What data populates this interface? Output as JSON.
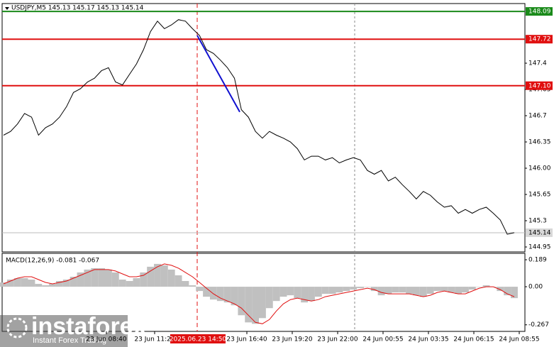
{
  "brand": "instaforex",
  "tagline": "Instant Forex Trading",
  "chart_data": [
    {
      "type": "line",
      "title": "USDJPY,M5  145.13 145.17 145.13 145.14",
      "color": "#000000",
      "values": [
        146.44,
        146.49,
        146.59,
        146.73,
        146.68,
        146.44,
        146.54,
        146.59,
        146.68,
        146.82,
        147.01,
        147.06,
        147.15,
        147.2,
        147.3,
        147.34,
        147.15,
        147.11,
        147.25,
        147.39,
        147.58,
        147.82,
        147.96,
        147.86,
        147.91,
        147.98,
        147.96,
        147.86,
        147.77,
        147.58,
        147.53,
        147.44,
        147.34,
        147.2,
        146.78,
        146.68,
        146.49,
        146.4,
        146.49,
        146.44,
        146.4,
        146.35,
        146.26,
        146.11,
        146.16,
        146.16,
        146.11,
        146.14,
        146.07,
        146.11,
        146.14,
        146.11,
        145.97,
        145.92,
        145.97,
        145.83,
        145.88,
        145.78,
        145.69,
        145.59,
        145.69,
        145.64,
        145.55,
        145.48,
        145.5,
        145.4,
        145.45,
        145.4,
        145.45,
        145.48,
        145.4,
        145.31,
        145.12,
        145.14
      ],
      "levels": [
        {
          "value": 148.09,
          "color": "#1a8a1a"
        },
        {
          "value": 147.72,
          "color": "#e01010"
        },
        {
          "value": 147.1,
          "label": "147.10",
          "color": "#e01010"
        }
      ],
      "current": 145.14,
      "trend": {
        "values": [
          147.77,
          146.75
        ],
        "color": "#1010d0"
      },
      "ylim": [
        144.884,
        148.195
      ],
      "yticks": [
        147.4,
        147.05,
        146.7,
        146.35,
        {
          "value": 146,
          "label": "146.00"
        },
        145.65,
        145.3,
        144.95
      ],
      "time_labels": [
        "23 Jun 08:40",
        "23 Jun 11:20",
        "23 Jun 16:40",
        "23 Jun 19:20",
        "23 Jun 22:00",
        "24 Jun 00:55",
        "24 Jun 03:35",
        "24 Jun 06:15",
        "24 Jun 08:55"
      ],
      "marker_label": "2025.06.23 14:50"
    },
    {
      "type": "bar",
      "title": "MACD(12,26,9) -0.081 -0.067",
      "color": "#c0c0c0",
      "values": [
        0.03,
        0.05,
        0.06,
        0.06,
        0.05,
        0.02,
        0.01,
        0.02,
        0.04,
        0.05,
        0.07,
        0.1,
        0.12,
        0.13,
        0.13,
        0.12,
        0.1,
        0.05,
        0.04,
        0.06,
        0.1,
        0.14,
        0.16,
        0.15,
        0.12,
        0.08,
        0.04,
        0.01,
        -0.03,
        -0.07,
        -0.09,
        -0.1,
        -0.11,
        -0.13,
        -0.2,
        -0.25,
        -0.26,
        -0.22,
        -0.15,
        -0.1,
        -0.07,
        -0.06,
        -0.08,
        -0.11,
        -0.1,
        -0.07,
        -0.05,
        -0.05,
        -0.04,
        -0.03,
        -0.02,
        -0.01,
        0.0,
        -0.03,
        -0.06,
        -0.05,
        -0.04,
        -0.04,
        -0.05,
        -0.06,
        -0.07,
        -0.05,
        -0.03,
        -0.03,
        -0.04,
        -0.05,
        -0.04,
        -0.02,
        0.0,
        0.01,
        0.0,
        -0.03,
        -0.06,
        -0.08
      ],
      "signal": {
        "color": "#e01010",
        "values": [
          0.02,
          0.04,
          0.06,
          0.07,
          0.07,
          0.05,
          0.03,
          0.02,
          0.03,
          0.04,
          0.06,
          0.08,
          0.1,
          0.12,
          0.12,
          0.12,
          0.11,
          0.09,
          0.07,
          0.07,
          0.08,
          0.11,
          0.14,
          0.16,
          0.15,
          0.13,
          0.1,
          0.07,
          0.03,
          -0.01,
          -0.05,
          -0.08,
          -0.1,
          -0.12,
          -0.15,
          -0.2,
          -0.25,
          -0.26,
          -0.23,
          -0.17,
          -0.12,
          -0.09,
          -0.08,
          -0.09,
          -0.1,
          -0.09,
          -0.07,
          -0.06,
          -0.05,
          -0.04,
          -0.03,
          -0.02,
          -0.01,
          -0.02,
          -0.04,
          -0.05,
          -0.05,
          -0.05,
          -0.05,
          -0.06,
          -0.07,
          -0.06,
          -0.04,
          -0.03,
          -0.04,
          -0.05,
          -0.05,
          -0.03,
          -0.01,
          0.0,
          0.0,
          -0.02,
          -0.05,
          -0.07
        ]
      },
      "ylim": [
        -0.313,
        0.234
      ],
      "yticks": [
        0.189,
        {
          "value": 0,
          "label": "0.00"
        },
        -0.267
      ]
    }
  ]
}
